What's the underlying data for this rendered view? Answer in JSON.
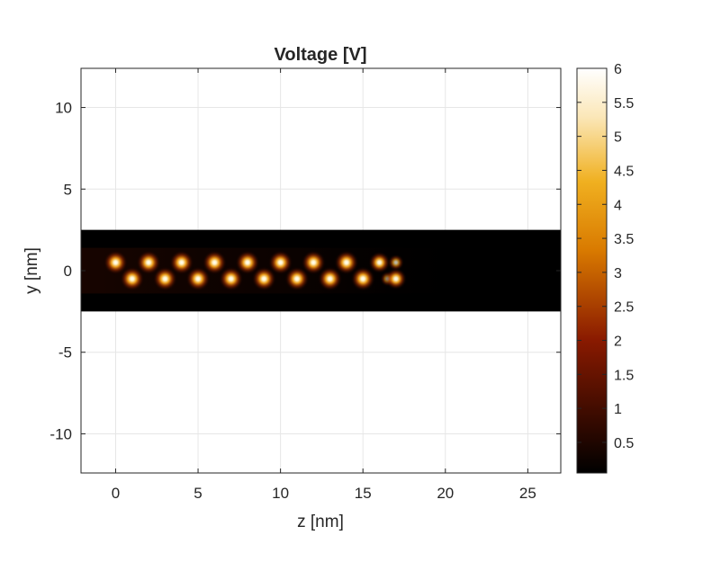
{
  "chart_data": {
    "type": "heatmap",
    "title": "Voltage [V]",
    "xlabel": "z [nm]",
    "ylabel": "y [nm]",
    "xlim": [
      -2.1,
      27
    ],
    "ylim": [
      -12.4,
      12.4
    ],
    "x_ticks": [
      0,
      5,
      10,
      15,
      20,
      25
    ],
    "x_tick_labels": [
      "0",
      "5",
      "10",
      "15",
      "20",
      "25"
    ],
    "y_ticks": [
      10,
      5,
      0,
      -5,
      -10
    ],
    "y_tick_labels": [
      "10",
      "5",
      "0",
      "-5",
      "-10"
    ],
    "grid": true,
    "colormap": "afmhot",
    "colorbar": {
      "range": [
        0.05,
        6
      ],
      "ticks": [
        6,
        5.5,
        5,
        4.5,
        4,
        3.5,
        3,
        2.5,
        2,
        1.5,
        1,
        0.5
      ],
      "tick_labels": [
        "6",
        "5.5",
        "5",
        "4.5",
        "4",
        "3.5",
        "3",
        "2.5",
        "2",
        "1.5",
        "1",
        "0.5"
      ]
    },
    "field_region": {
      "z": [
        -2.1,
        27
      ],
      "y": [
        -2.5,
        2.5
      ],
      "background_value": 0.05
    },
    "hotspots": [
      {
        "z": 0,
        "y": 0.5,
        "value": 6
      },
      {
        "z": 1,
        "y": -0.5,
        "value": 6
      },
      {
        "z": 2,
        "y": 0.5,
        "value": 6
      },
      {
        "z": 3,
        "y": -0.5,
        "value": 6
      },
      {
        "z": 4,
        "y": 0.5,
        "value": 6
      },
      {
        "z": 5,
        "y": -0.5,
        "value": 6
      },
      {
        "z": 6,
        "y": 0.5,
        "value": 6
      },
      {
        "z": 7,
        "y": -0.5,
        "value": 6
      },
      {
        "z": 8,
        "y": 0.5,
        "value": 6
      },
      {
        "z": 9,
        "y": -0.5,
        "value": 6
      },
      {
        "z": 10,
        "y": 0.5,
        "value": 6
      },
      {
        "z": 11,
        "y": -0.5,
        "value": 6
      },
      {
        "z": 12,
        "y": 0.5,
        "value": 6
      },
      {
        "z": 13,
        "y": -0.5,
        "value": 6
      },
      {
        "z": 14,
        "y": 0.5,
        "value": 6
      },
      {
        "z": 15,
        "y": -0.5,
        "value": 6
      },
      {
        "z": 16,
        "y": 0.5,
        "value": 5
      },
      {
        "z": 16.5,
        "y": -0.5,
        "value": 2.5
      },
      {
        "z": 17,
        "y": 0.5,
        "value": 3
      },
      {
        "z": 17,
        "y": -0.5,
        "value": 5
      }
    ]
  }
}
